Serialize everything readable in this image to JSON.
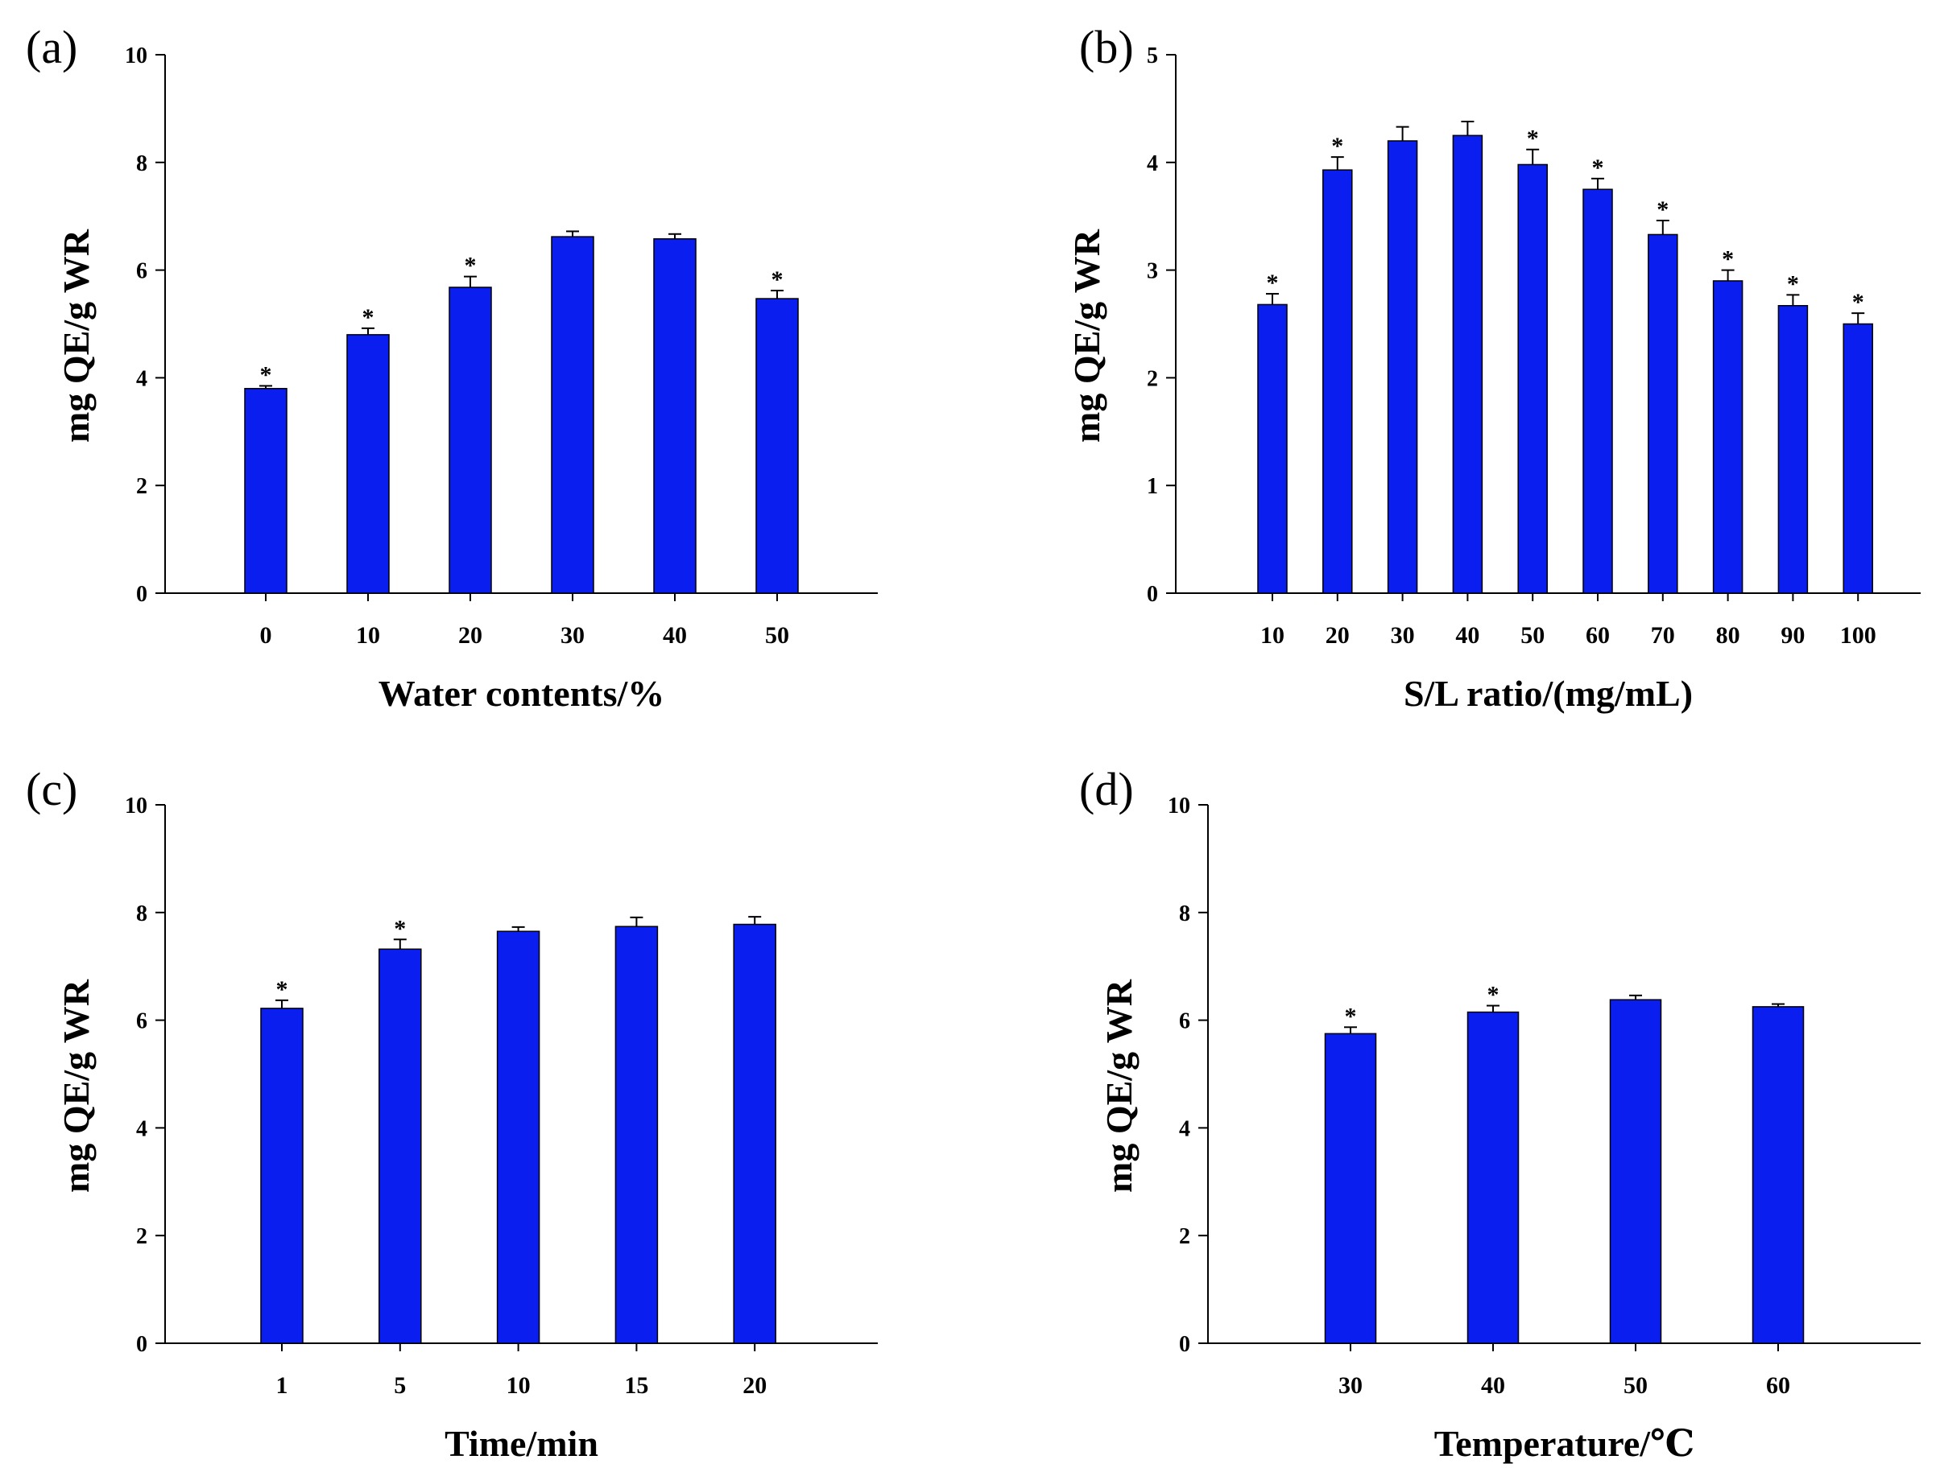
{
  "colors": {
    "bar": "#0b1ef0",
    "bar_edge": "#000000",
    "axis": "#000000"
  },
  "chart_data": [
    {
      "type": "bar",
      "panel": "(a)",
      "xlabel": "Water contents/%",
      "ylabel": "mg QE/g WR",
      "ylim": [
        0,
        10
      ],
      "yticks": [
        0,
        2,
        4,
        6,
        8,
        10
      ],
      "categories": [
        "0",
        "10",
        "20",
        "30",
        "40",
        "50"
      ],
      "values": [
        3.8,
        4.8,
        5.68,
        6.62,
        6.58,
        5.47
      ],
      "errors": [
        0.05,
        0.12,
        0.2,
        0.1,
        0.09,
        0.15
      ],
      "significant": [
        true,
        true,
        true,
        false,
        false,
        true
      ],
      "marker": "*"
    },
    {
      "type": "bar",
      "panel": "(b)",
      "xlabel": "S/L ratio/(mg/mL)",
      "ylabel": "mg QE/g WR",
      "ylim": [
        0,
        5
      ],
      "yticks": [
        0,
        1,
        2,
        3,
        4,
        5
      ],
      "categories": [
        "10",
        "20",
        "30",
        "40",
        "50",
        "60",
        "70",
        "80",
        "90",
        "100"
      ],
      "values": [
        2.68,
        3.93,
        4.2,
        4.25,
        3.98,
        3.75,
        3.33,
        2.9,
        2.67,
        2.5
      ],
      "errors": [
        0.1,
        0.12,
        0.13,
        0.13,
        0.14,
        0.1,
        0.13,
        0.1,
        0.1,
        0.1
      ],
      "significant": [
        true,
        true,
        false,
        false,
        true,
        true,
        true,
        true,
        true,
        true
      ],
      "marker": "*"
    },
    {
      "type": "bar",
      "panel": "(c)",
      "xlabel": "Time/min",
      "ylabel": "mg QE/g WR",
      "ylim": [
        0,
        10
      ],
      "yticks": [
        0,
        2,
        4,
        6,
        8,
        10
      ],
      "categories": [
        "1",
        "5",
        "10",
        "15",
        "20"
      ],
      "values": [
        6.22,
        7.32,
        7.65,
        7.74,
        7.78
      ],
      "errors": [
        0.15,
        0.18,
        0.08,
        0.17,
        0.14
      ],
      "significant": [
        true,
        true,
        false,
        false,
        false
      ],
      "marker": "*"
    },
    {
      "type": "bar",
      "panel": "(d)",
      "xlabel": "Temperature/℃",
      "ylabel": "mg QE/g WR",
      "ylim": [
        0,
        10
      ],
      "yticks": [
        0,
        2,
        4,
        6,
        8,
        10
      ],
      "categories": [
        "30",
        "40",
        "50",
        "60"
      ],
      "values": [
        5.75,
        6.15,
        6.38,
        6.25
      ],
      "errors": [
        0.12,
        0.12,
        0.08,
        0.05
      ],
      "significant": [
        true,
        true,
        false,
        false
      ],
      "marker": "*"
    }
  ]
}
